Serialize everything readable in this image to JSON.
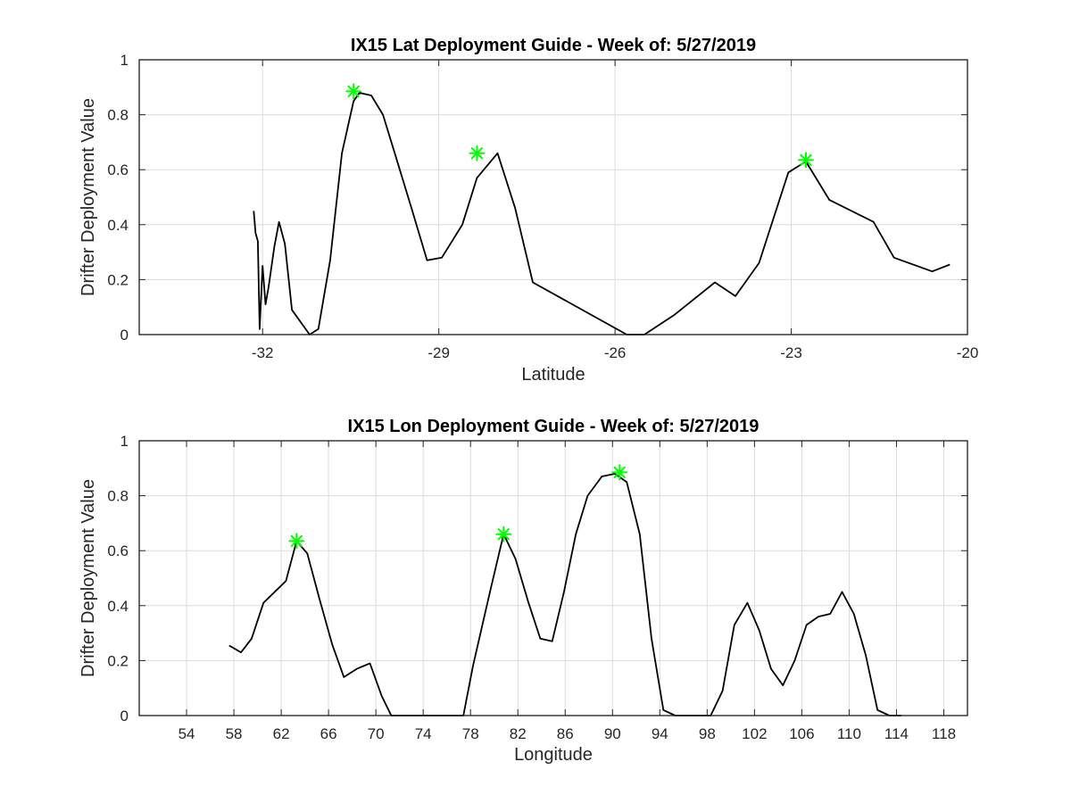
{
  "chart_data": [
    {
      "type": "line",
      "title": "IX15 Lat Deployment Guide - Week of: 5/27/2019",
      "xlabel": "Latitude",
      "ylabel": "Drifter Deployment Value",
      "xlim": [
        -34.1,
        -20
      ],
      "ylim": [
        0,
        1
      ],
      "xticks": [
        -32,
        -29,
        -26,
        -23,
        -20
      ],
      "yticks": [
        0,
        0.2,
        0.4,
        0.6,
        0.8,
        1
      ],
      "grid": true,
      "line_color": "#000000",
      "marker_color": "#00ff00",
      "series": [
        {
          "x": [
            -32.15,
            -32.12,
            -32.08,
            -32.05,
            -32.0,
            -31.95,
            -31.9,
            -31.8,
            -31.72,
            -31.62,
            -31.5,
            -31.2,
            -31.05,
            -30.85,
            -30.65,
            -30.45,
            -30.35,
            -30.15,
            -29.95,
            -29.75,
            -29.45,
            -29.2,
            -28.95,
            -28.6,
            -28.35,
            -28.0,
            -27.7,
            -27.4,
            -25.8,
            -25.5,
            -25.0,
            -24.3,
            -23.95,
            -23.55,
            -23.05,
            -22.75,
            -22.35,
            -21.6,
            -21.25,
            -20.6,
            -20.3
          ],
          "y": [
            0.45,
            0.37,
            0.34,
            0.02,
            0.25,
            0.11,
            0.17,
            0.32,
            0.41,
            0.33,
            0.09,
            0.0,
            0.02,
            0.27,
            0.66,
            0.85,
            0.88,
            0.87,
            0.8,
            0.66,
            0.45,
            0.27,
            0.28,
            0.4,
            0.57,
            0.66,
            0.46,
            0.19,
            0.0,
            0.0,
            0.07,
            0.19,
            0.14,
            0.26,
            0.59,
            0.63,
            0.49,
            0.41,
            0.28,
            0.23,
            0.255
          ]
        }
      ],
      "markers": [
        {
          "x": -30.45,
          "y": 0.885
        },
        {
          "x": -28.35,
          "y": 0.66
        },
        {
          "x": -22.75,
          "y": 0.635
        }
      ]
    },
    {
      "type": "line",
      "title": "IX15 Lon Deployment Guide - Week of: 5/27/2019",
      "xlabel": "Longitude",
      "ylabel": "Drifter Deployment Value",
      "xlim": [
        50,
        120
      ],
      "ylim": [
        0,
        1
      ],
      "xticks": [
        54,
        58,
        62,
        66,
        70,
        74,
        78,
        82,
        86,
        90,
        94,
        98,
        102,
        106,
        110,
        114,
        118
      ],
      "yticks": [
        0,
        0.2,
        0.4,
        0.6,
        0.8,
        1
      ],
      "grid": true,
      "line_color": "#000000",
      "marker_color": "#00ff00",
      "series": [
        {
          "x": [
            57.6,
            58.6,
            59.5,
            60.5,
            62.4,
            63.3,
            64.2,
            65.2,
            66.3,
            67.3,
            68.4,
            69.5,
            70.5,
            71.3,
            72.3,
            73.3,
            74.3,
            75.3,
            76.3,
            77.4,
            78.2,
            79.7,
            80.8,
            81.8,
            82.9,
            83.9,
            84.9,
            85.9,
            86.9,
            87.9,
            89.1,
            90.2,
            91.2,
            92.3,
            93.3,
            94.3,
            95.3,
            96.3,
            97.3,
            98.3,
            99.3,
            100.3,
            101.4,
            102.4,
            103.4,
            104.4,
            105.4,
            106.4,
            107.4,
            108.4,
            109.4,
            110.4,
            111.4,
            112.4,
            113.4,
            114.4
          ],
          "y": [
            0.255,
            0.23,
            0.28,
            0.41,
            0.49,
            0.635,
            0.59,
            0.43,
            0.26,
            0.14,
            0.17,
            0.19,
            0.07,
            0.0,
            0.0,
            0.0,
            0.0,
            0.0,
            0.0,
            0.0,
            0.18,
            0.46,
            0.66,
            0.57,
            0.41,
            0.28,
            0.27,
            0.45,
            0.66,
            0.8,
            0.87,
            0.88,
            0.85,
            0.66,
            0.28,
            0.02,
            0.0,
            0.0,
            0.0,
            0.0,
            0.09,
            0.33,
            0.41,
            0.31,
            0.17,
            0.11,
            0.2,
            0.33,
            0.36,
            0.37,
            0.45,
            0.37,
            0.22,
            0.02,
            0.0,
            0.0
          ]
        }
      ],
      "markers": [
        {
          "x": 63.3,
          "y": 0.635
        },
        {
          "x": 80.8,
          "y": 0.66
        },
        {
          "x": 90.6,
          "y": 0.885
        }
      ]
    }
  ]
}
